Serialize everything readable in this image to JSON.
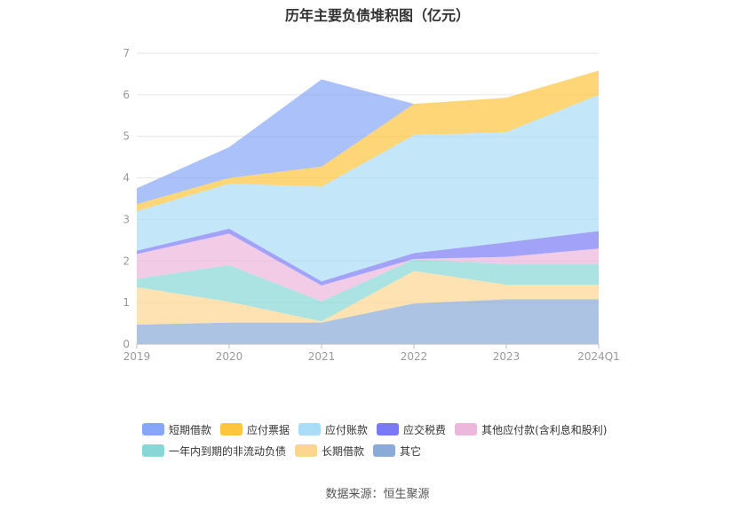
{
  "chart_data": {
    "type": "area",
    "stacked": true,
    "title": "历年主要负债堆积图（亿元）",
    "categories": [
      "2019",
      "2020",
      "2021",
      "2022",
      "2023",
      "2024Q1"
    ],
    "ylim": [
      0,
      7
    ],
    "yticks": [
      "0",
      "1",
      "2",
      "3",
      "4",
      "5",
      "6",
      "7"
    ],
    "grid": true,
    "legend_position": "bottom",
    "series": [
      {
        "name": "其它",
        "color": "#8aaad8",
        "values": [
          0.47,
          0.52,
          0.52,
          0.98,
          1.08,
          1.08
        ]
      },
      {
        "name": "长期借款",
        "color": "#fdd591",
        "values": [
          0.9,
          0.5,
          0.03,
          0.78,
          0.35,
          0.35
        ]
      },
      {
        "name": "一年内到期的非流动负债",
        "color": "#87d7d6",
        "values": [
          0.2,
          0.88,
          0.48,
          0.28,
          0.5,
          0.5
        ]
      },
      {
        "name": "其他应付款(含利息和股利)",
        "color": "#ecb7dc",
        "values": [
          0.6,
          0.76,
          0.38,
          0.01,
          0.17,
          0.37
        ]
      },
      {
        "name": "应交税费",
        "color": "#7b7af5",
        "values": [
          0.08,
          0.12,
          0.1,
          0.14,
          0.35,
          0.42
        ]
      },
      {
        "name": "应付账款",
        "color": "#a9dcf7",
        "values": [
          0.95,
          1.08,
          2.28,
          2.84,
          2.65,
          3.28
        ]
      },
      {
        "name": "应付票据",
        "color": "#fdc53e",
        "values": [
          0.17,
          0.14,
          0.48,
          0.75,
          0.83,
          0.58
        ]
      },
      {
        "name": "短期借款",
        "color": "#88a6f7",
        "values": [
          0.38,
          0.74,
          2.1,
          0.0,
          0.0,
          0.0
        ]
      }
    ],
    "legend_order": [
      "短期借款",
      "应付票据",
      "应付账款",
      "应交税费",
      "其他应付款(含利息和股利)",
      "一年内到期的非流动负债",
      "长期借款",
      "其它"
    ]
  },
  "source_text": "数据来源：恒生聚源",
  "colors": {
    "axis": "#bfbfbf",
    "grid": "#e6e6e6",
    "tick_text": "#999999"
  }
}
